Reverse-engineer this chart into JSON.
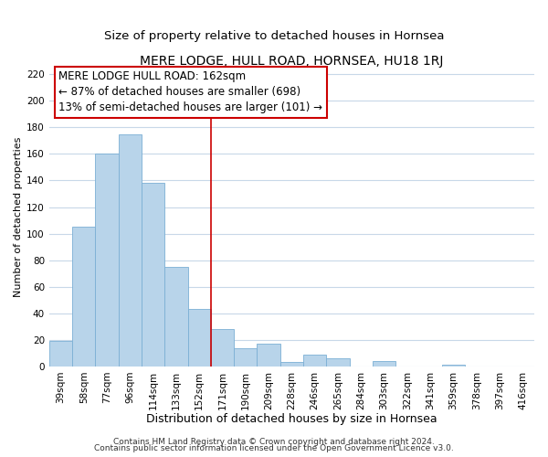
{
  "title": "MERE LODGE, HULL ROAD, HORNSEA, HU18 1RJ",
  "subtitle": "Size of property relative to detached houses in Hornsea",
  "xlabel": "Distribution of detached houses by size in Hornsea",
  "ylabel": "Number of detached properties",
  "bar_labels": [
    "39sqm",
    "58sqm",
    "77sqm",
    "96sqm",
    "114sqm",
    "133sqm",
    "152sqm",
    "171sqm",
    "190sqm",
    "209sqm",
    "228sqm",
    "246sqm",
    "265sqm",
    "284sqm",
    "303sqm",
    "322sqm",
    "341sqm",
    "359sqm",
    "378sqm",
    "397sqm",
    "416sqm"
  ],
  "bar_values": [
    19,
    105,
    160,
    175,
    138,
    75,
    43,
    28,
    14,
    17,
    3,
    9,
    6,
    0,
    4,
    0,
    0,
    1,
    0,
    0,
    0
  ],
  "bar_color": "#b8d4ea",
  "bar_edge_color": "#7bafd4",
  "vline_x": 7,
  "vline_color": "#cc0000",
  "vline_linewidth": 1.2,
  "ylim": [
    0,
    225
  ],
  "yticks": [
    0,
    20,
    40,
    60,
    80,
    100,
    120,
    140,
    160,
    180,
    200,
    220
  ],
  "annotation_line1": "MERE LODGE HULL ROAD: 162sqm",
  "annotation_line2": "← 87% of detached houses are smaller (698)",
  "annotation_line3": "13% of semi-detached houses are larger (101) →",
  "annotation_box_edgecolor": "#cc0000",
  "annotation_box_facecolor": "#ffffff",
  "footer_line1": "Contains HM Land Registry data © Crown copyright and database right 2024.",
  "footer_line2": "Contains public sector information licensed under the Open Government Licence v3.0.",
  "background_color": "#ffffff",
  "grid_color": "#c8d8e8",
  "title_fontsize": 10,
  "subtitle_fontsize": 9.5,
  "xlabel_fontsize": 9,
  "ylabel_fontsize": 8,
  "tick_fontsize": 7.5,
  "footer_fontsize": 6.5,
  "annotation_fontsize": 8.5
}
